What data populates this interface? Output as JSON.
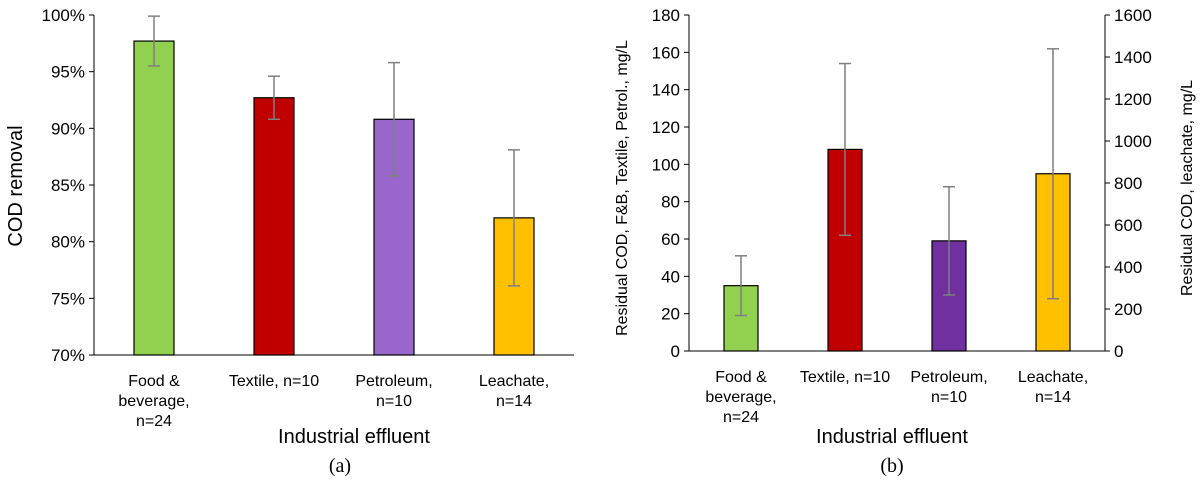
{
  "chart_data": [
    {
      "type": "bar",
      "panel_label": "(a)",
      "categories": [
        "Food & beverage, n=24",
        "Textile, n=10",
        "Petroleum, n=10",
        "Leachate, n=14"
      ],
      "category_lines": [
        [
          "Food &",
          "beverage,",
          "n=24"
        ],
        [
          "Textile, n=10"
        ],
        [
          "Petroleum,",
          "n=10"
        ],
        [
          "Leachate,",
          "n=14"
        ]
      ],
      "values": [
        97.7,
        92.7,
        90.8,
        82.1
      ],
      "error": [
        2.2,
        1.9,
        5.0,
        6.0
      ],
      "colors": [
        "#92d050",
        "#c00000",
        "#9966cc",
        "#ffc000"
      ],
      "xlabel": "Industrial effluent",
      "ylabel": "COD removal",
      "ylim": [
        70,
        100
      ],
      "yticks": [
        70,
        75,
        80,
        85,
        90,
        95,
        100
      ],
      "ytick_labels": [
        "70%",
        "75%",
        "80%",
        "85%",
        "90%",
        "95%",
        "100%"
      ],
      "grid": false
    },
    {
      "type": "bar",
      "panel_label": "(b)",
      "categories": [
        "Food & beverage, n=24",
        "Textile, n=10",
        "Petroleum, n=10",
        "Leachate, n=14"
      ],
      "category_lines": [
        [
          "Food &",
          "beverage,",
          "n=24"
        ],
        [
          "Textile, n=10"
        ],
        [
          "Petroleum,",
          "n=10"
        ],
        [
          "Leachate,",
          "n=14"
        ]
      ],
      "values": [
        35,
        108,
        59,
        844
      ],
      "error": [
        16,
        46,
        29,
        595
      ],
      "axis": [
        "left",
        "left",
        "left",
        "right"
      ],
      "colors": [
        "#92d050",
        "#c00000",
        "#7030a0",
        "#ffc000"
      ],
      "xlabel": "Industrial effluent",
      "ylabel": "Residual COD, F&B, Textile, Petrol., mg/L",
      "ylabel_right": "Residual COD, leachate, mg/L",
      "ylim": [
        0,
        180
      ],
      "yticks": [
        0,
        20,
        40,
        60,
        80,
        100,
        120,
        140,
        160,
        180
      ],
      "ytick_labels": [
        "0",
        "20",
        "40",
        "60",
        "80",
        "100",
        "120",
        "140",
        "160",
        "180"
      ],
      "ylim_right": [
        0,
        1600
      ],
      "yticks_right": [
        0,
        200,
        400,
        600,
        800,
        1000,
        1200,
        1400,
        1600
      ],
      "ytick_labels_right": [
        "0",
        "200",
        "400",
        "600",
        "800",
        "1000",
        "1200",
        "1400",
        "1600"
      ],
      "grid": false
    }
  ]
}
